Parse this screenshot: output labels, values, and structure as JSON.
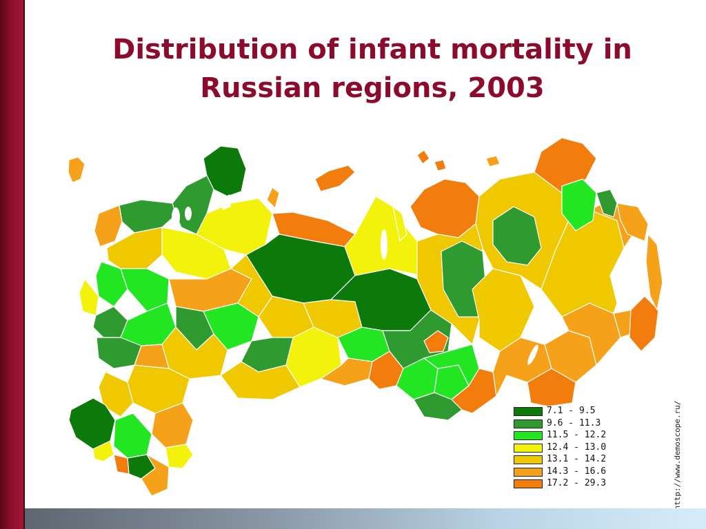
{
  "slide": {
    "title_line1": "Distribution of infant mortality in",
    "title_line2": "Russian regions, 2003",
    "source": "http://www.demoscope.ru/"
  },
  "colors": {
    "title": "#8c0a2c",
    "sidebar": "#8a0f2a",
    "class_1": "#0b7a0b",
    "class_2": "#2f9a2f",
    "class_3": "#22e622",
    "class_4": "#f2f20a",
    "class_5": "#f0c800",
    "class_6": "#f5a21a",
    "class_7": "#f27d0c"
  },
  "legend": [
    {
      "label": "7.1 - 9.5",
      "color": "#0b7a0b"
    },
    {
      "label": "9.6 - 11.3",
      "color": "#2f9a2f"
    },
    {
      "label": "11.5 - 12.2",
      "color": "#22e622"
    },
    {
      "label": "12.4 - 13.0",
      "color": "#f2f20a"
    },
    {
      "label": "13.1 - 14.2",
      "color": "#f0c800"
    },
    {
      "label": "14.3 - 16.6",
      "color": "#f5a21a"
    },
    {
      "label": "17.2 - 29.3",
      "color": "#f27d0c"
    }
  ]
}
